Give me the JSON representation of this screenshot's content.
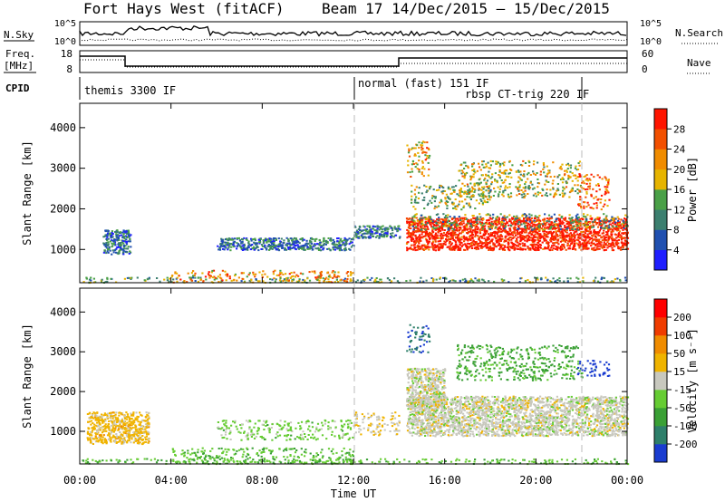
{
  "header": {
    "title": "Fort Hays West (fitACF)",
    "beam_date": "Beam 17  14/Dec/2015 – 15/Dec/2015"
  },
  "summary_panels": {
    "nsky_label": "N.Sky",
    "nsky_ticks": [
      "10^5",
      "10^0"
    ],
    "nsearch_label": "N.Search",
    "nsearch_ticks": [
      "10^5",
      "10^0"
    ],
    "freq_label_line1": "Freq.",
    "freq_label_line2": "[MHz]",
    "freq_ticks": [
      "18",
      "8"
    ],
    "nave_label": "Nave",
    "nave_ticks": [
      "60",
      "0"
    ],
    "cpid_label": "CPID",
    "cpid_modes": [
      {
        "name": "themis 3300 IF",
        "start_hour": 0
      },
      {
        "name": "normal (fast) 151 IF",
        "start_hour": 12
      },
      {
        "name": "rbsp CT-trig 220 IF",
        "start_hour": 22
      }
    ]
  },
  "axes": {
    "ylabel": "Slant Range [km]",
    "xlabel": "Time UT",
    "xticks": [
      "00:00",
      "04:00",
      "08:00",
      "12:00",
      "16:00",
      "20:00",
      "00:00"
    ],
    "yticks": [
      "1000",
      "2000",
      "3000",
      "4000"
    ]
  },
  "power_colorbar": {
    "label": "Power [dB]",
    "ticks": [
      "4",
      "8",
      "12",
      "16",
      "20",
      "24",
      "28"
    ],
    "colors": [
      "#1f1fff",
      "#2050b0",
      "#3c7f6f",
      "#4aa047",
      "#e6b400",
      "#f08c00",
      "#f25000",
      "#ff1500"
    ]
  },
  "velocity_colorbar": {
    "label": "Velocity [m s⁻¹]",
    "ticks": [
      "200",
      "100",
      "50",
      "15",
      "-15",
      "-50",
      "-100",
      "-200"
    ],
    "colors": [
      "#1a3cd0",
      "#2e7f6a",
      "#3aa035",
      "#66cc33",
      "#c8c8be",
      "#f0b400",
      "#f08c00",
      "#f03c00",
      "#ff0000"
    ]
  },
  "chart_data": [
    {
      "type": "heatmap",
      "name": "Power",
      "xlabel": "Time UT",
      "ylabel": "Slant Range [km]",
      "xlim": [
        0,
        24
      ],
      "ylim": [
        180,
        4600
      ],
      "zlim": [
        0,
        30
      ],
      "regions": [
        {
          "t0": 0.1,
          "t1": 24,
          "r0": 200,
          "r1": 330,
          "z": 12
        },
        {
          "t0": 4,
          "t1": 12,
          "r0": 200,
          "r1": 500,
          "z": 20
        },
        {
          "t0": 1,
          "t1": 2.2,
          "r0": 900,
          "r1": 1500,
          "z": 8
        },
        {
          "t0": 6,
          "t1": 12,
          "r0": 1000,
          "r1": 1300,
          "z": 8
        },
        {
          "t0": 12,
          "t1": 14,
          "r0": 1300,
          "r1": 1600,
          "z": 8
        },
        {
          "t0": 14.3,
          "t1": 24,
          "r0": 1000,
          "r1": 1800,
          "z": 29
        },
        {
          "t0": 14.5,
          "t1": 24,
          "r0": 1500,
          "r1": 1900,
          "z": 12
        },
        {
          "t0": 14.5,
          "t1": 18,
          "r0": 2000,
          "r1": 2600,
          "z": 14
        },
        {
          "t0": 14.3,
          "t1": 15.3,
          "r0": 2800,
          "r1": 3700,
          "z": 20
        },
        {
          "t0": 16.5,
          "t1": 22,
          "r0": 2300,
          "r1": 3200,
          "z": 16
        },
        {
          "t0": 21.8,
          "t1": 23.2,
          "r0": 2000,
          "r1": 2900,
          "z": 24
        }
      ]
    },
    {
      "type": "heatmap",
      "name": "Velocity",
      "xlabel": "Time UT",
      "ylabel": "Slant Range [km]",
      "xlim": [
        0,
        24
      ],
      "ylim": [
        180,
        4600
      ],
      "zlim": [
        -200,
        200
      ],
      "regions": [
        {
          "t0": 0.1,
          "t1": 24,
          "r0": 200,
          "r1": 330,
          "z": -60
        },
        {
          "t0": 4,
          "t1": 12,
          "r0": 200,
          "r1": 600,
          "z": -60
        },
        {
          "t0": 0.3,
          "t1": 3,
          "r0": 700,
          "r1": 1500,
          "z": 40
        },
        {
          "t0": 6,
          "t1": 12,
          "r0": 800,
          "r1": 1300,
          "z": -40
        },
        {
          "t0": 12,
          "t1": 14,
          "r0": 900,
          "r1": 1500,
          "z": 20
        },
        {
          "t0": 14.3,
          "t1": 24,
          "r0": 900,
          "r1": 1900,
          "z": 0
        },
        {
          "t0": 14.3,
          "t1": 16,
          "r0": 1600,
          "r1": 2600,
          "z": 0
        },
        {
          "t0": 14.3,
          "t1": 15.3,
          "r0": 3000,
          "r1": 3700,
          "z": -150
        },
        {
          "t0": 16.5,
          "t1": 22,
          "r0": 2300,
          "r1": 3200,
          "z": -80
        },
        {
          "t0": 21.8,
          "t1": 23.2,
          "r0": 2400,
          "r1": 2800,
          "z": -180
        }
      ]
    }
  ]
}
